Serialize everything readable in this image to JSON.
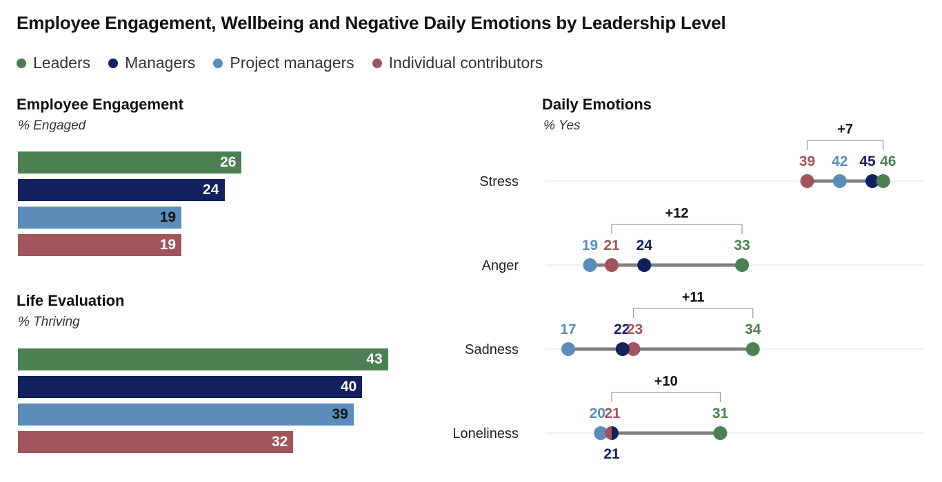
{
  "title": "Employee Engagement, Wellbeing and Negative Daily Emotions by Leadership Level",
  "colors": {
    "leaders": "#4c8052",
    "managers": "#13205e",
    "project_managers": "#5c8cba",
    "individual_contributors": "#a0555c",
    "connector": "#7f7f7f",
    "grid": "#e2e2e2",
    "bracket": "#9a9a9a"
  },
  "legend": [
    {
      "key": "leaders",
      "label": "Leaders"
    },
    {
      "key": "managers",
      "label": "Managers"
    },
    {
      "key": "project_managers",
      "label": "Project managers"
    },
    {
      "key": "individual_contributors",
      "label": "Individual contributors"
    }
  ],
  "chart_data": [
    {
      "type": "bar",
      "orientation": "horizontal",
      "title": "Employee Engagement",
      "subtitle": "% Engaged",
      "categories": [
        "Leaders",
        "Managers",
        "Project managers",
        "Individual contributors"
      ],
      "values": [
        26,
        24,
        19,
        19
      ],
      "xlim": [
        0,
        52
      ]
    },
    {
      "type": "bar",
      "orientation": "horizontal",
      "title": "Life Evaluation",
      "subtitle": "% Thriving",
      "categories": [
        "Leaders",
        "Managers",
        "Project managers",
        "Individual contributors"
      ],
      "values": [
        43,
        40,
        39,
        32
      ],
      "xlim": [
        0,
        52
      ]
    },
    {
      "type": "scatter",
      "subtype": "dot-range",
      "title": "Daily Emotions",
      "subtitle": "% Yes",
      "xlim": [
        15,
        50
      ],
      "series_keys": [
        "leaders",
        "managers",
        "project_managers",
        "individual_contributors"
      ],
      "rows": [
        {
          "label": "Stress",
          "values": {
            "leaders": 46,
            "managers": 45,
            "project_managers": 42,
            "individual_contributors": 39
          },
          "gap": "+7",
          "gap_range": [
            39,
            46
          ]
        },
        {
          "label": "Anger",
          "values": {
            "leaders": 33,
            "managers": 24,
            "project_managers": 19,
            "individual_contributors": 21
          },
          "gap": "+12",
          "gap_range": [
            21,
            33
          ]
        },
        {
          "label": "Sadness",
          "values": {
            "leaders": 34,
            "managers": 22,
            "project_managers": 17,
            "individual_contributors": 23
          },
          "gap": "+11",
          "gap_range": [
            23,
            34
          ]
        },
        {
          "label": "Loneliness",
          "values": {
            "leaders": 31,
            "managers": 21,
            "project_managers": 20,
            "individual_contributors": 21
          },
          "gap": "+10",
          "gap_range": [
            21,
            31
          ]
        }
      ]
    }
  ]
}
